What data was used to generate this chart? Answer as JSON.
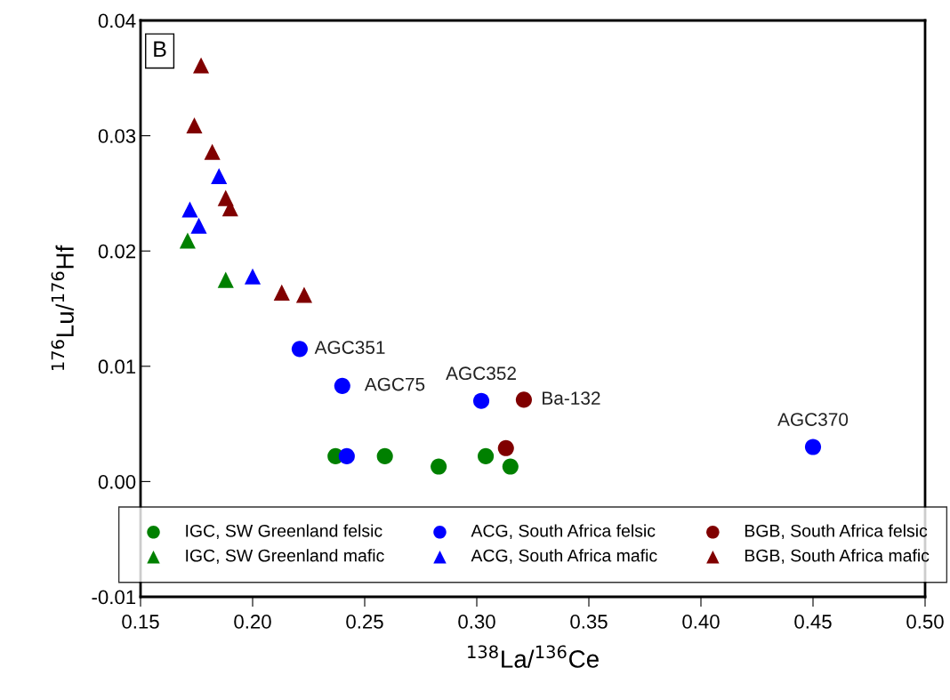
{
  "chart_data": {
    "type": "scatter",
    "title": "B",
    "xlabel": "$^{138}$La/$^{136}$Ce",
    "ylabel": "$^{176}$Lu/$^{176}$Hf",
    "xlim": [
      0.15,
      0.5
    ],
    "xticks": [
      {
        "value": 0.15,
        "label": "0.15"
      },
      {
        "value": 0.2,
        "label": "0.20"
      },
      {
        "value": 0.25,
        "label": "0.25"
      },
      {
        "value": 0.3,
        "label": "0.30"
      },
      {
        "value": 0.35,
        "label": "0.35"
      },
      {
        "value": 0.4,
        "label": "0.40"
      },
      {
        "value": 0.45,
        "label": "0.45"
      },
      {
        "value": 0.5,
        "label": "0.50"
      }
    ],
    "ylim": [
      -0.01,
      0.04
    ],
    "yticks": [
      {
        "value": -0.01,
        "label": "-0.01"
      },
      {
        "value": 0,
        "label": "0.00"
      },
      {
        "value": 0.01,
        "label": "0.01"
      },
      {
        "value": 0.02,
        "label": "0.02"
      },
      {
        "value": 0.03,
        "label": "0.03"
      },
      {
        "value": 0.04,
        "label": "0.04"
      }
    ],
    "grid": false,
    "legend": "bottom",
    "series": [
      {
        "name": "IGC, SW Greenland felsic",
        "color": "#008000",
        "marker": "circle",
        "x": [
          0.237,
          0.259,
          0.283,
          0.304,
          0.315
        ],
        "values": [
          0.0022,
          0.0022,
          0.0013,
          0.0022,
          0.0013
        ]
      },
      {
        "name": "IGC, SW Greenland mafic",
        "color": "#008000",
        "marker": "triangle",
        "x": [
          0.171,
          0.188
        ],
        "values": [
          0.0209,
          0.0175
        ]
      },
      {
        "name": "ACG, South Africa felsic",
        "color": "#0000ff",
        "marker": "circle",
        "x": [
          0.221,
          0.24,
          0.302,
          0.45,
          0.242
        ],
        "values": [
          0.0115,
          0.0083,
          0.007,
          0.003,
          0.0022
        ]
      },
      {
        "name": "ACG, South Africa mafic",
        "color": "#0000ff",
        "marker": "triangle",
        "x": [
          0.185,
          0.172,
          0.176,
          0.2
        ],
        "values": [
          0.0265,
          0.0236,
          0.0222,
          0.0178
        ]
      },
      {
        "name": "BGB, South Africa felsic",
        "color": "#800000",
        "marker": "circle",
        "x": [
          0.321,
          0.313
        ],
        "values": [
          0.0071,
          0.0029
        ]
      },
      {
        "name": "BGB, South Africa mafic",
        "color": "#800000",
        "marker": "triangle",
        "x": [
          0.177,
          0.174,
          0.182,
          0.188,
          0.19,
          0.213,
          0.223
        ],
        "values": [
          0.0361,
          0.0309,
          0.0286,
          0.0246,
          0.0237,
          0.0164,
          0.0162
        ]
      }
    ],
    "annotations": [
      {
        "text": "AGC351",
        "x": 0.221,
        "y": 0.0115
      },
      {
        "text": "AGC75",
        "x": 0.24,
        "y": 0.0083
      },
      {
        "text": "AGC352",
        "x": 0.302,
        "y": 0.007
      },
      {
        "text": "Ba-132",
        "x": 0.321,
        "y": 0.0071
      },
      {
        "text": "AGC370",
        "x": 0.45,
        "y": 0.003
      }
    ]
  }
}
